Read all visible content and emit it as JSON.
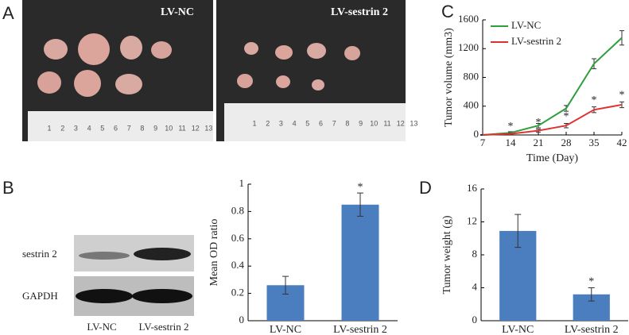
{
  "panel_labels": [
    "A",
    "B",
    "C",
    "D"
  ],
  "photos": {
    "left_label": "LV-NC",
    "right_label": "LV-sestrin 2",
    "ruler_labels": [
      "1",
      "2",
      "3",
      "4",
      "5",
      "6",
      "7",
      "8",
      "9",
      "10",
      "11",
      "12",
      "13"
    ]
  },
  "blot": {
    "rows": [
      "sestrin 2",
      "GAPDH"
    ],
    "lanes": [
      "LV-NC",
      "LV-sestrin 2"
    ]
  },
  "chart_data": [
    {
      "type": "line",
      "x_label": "Time (Day)",
      "y_label": "Tumor volume (mm3)",
      "x": [
        7,
        14,
        21,
        28,
        35,
        42
      ],
      "xlim": [
        7,
        42
      ],
      "xticks": [
        7,
        14,
        21,
        28,
        35,
        42
      ],
      "ylim": [
        0,
        1600
      ],
      "yticks": [
        0,
        400,
        800,
        1200,
        1600
      ],
      "legend": "upper-left",
      "series": [
        {
          "name": "LV-NC",
          "color": "#2e9e3e",
          "values": [
            0,
            30,
            130,
            370,
            990,
            1350
          ],
          "errors": [
            5,
            15,
            30,
            40,
            70,
            100
          ]
        },
        {
          "name": "LV-sestrin 2",
          "color": "#e03030",
          "values": [
            0,
            15,
            60,
            130,
            350,
            420
          ],
          "errors": [
            5,
            10,
            20,
            30,
            40,
            40
          ]
        }
      ],
      "annotations": [
        "*",
        "*",
        "*",
        "*",
        "*"
      ]
    },
    {
      "type": "bar",
      "y_label": "Mean OD ratio",
      "categories": [
        "LV-NC",
        "LV-sestrin 2"
      ],
      "values": [
        0.26,
        0.85
      ],
      "errors": [
        0.065,
        0.085
      ],
      "color": "#4a7ebf",
      "ylim": [
        0,
        1
      ],
      "yticks": [
        0,
        0.2,
        0.4,
        0.6,
        0.8,
        1
      ],
      "annotations": [
        null,
        "*"
      ]
    },
    {
      "type": "bar",
      "y_label": "Tumor weight (g)",
      "categories": [
        "LV-NC",
        "LV-sestrin 2"
      ],
      "values": [
        10.9,
        3.2
      ],
      "errors": [
        2.0,
        0.8
      ],
      "color": "#4a7ebf",
      "ylim": [
        0,
        16
      ],
      "yticks": [
        0,
        4,
        8,
        12,
        16
      ],
      "annotations": [
        null,
        "*"
      ]
    }
  ]
}
